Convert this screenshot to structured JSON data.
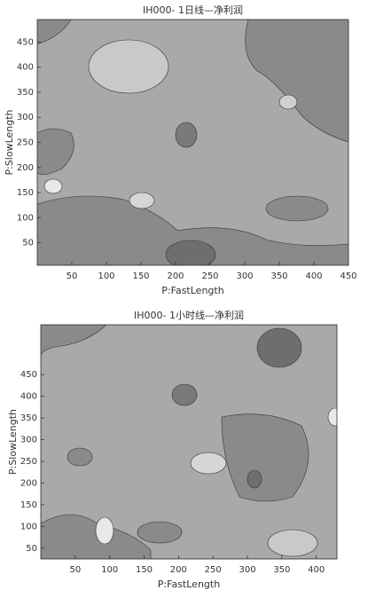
{
  "chart_data": [
    {
      "type": "contour",
      "title": "IH000- 1日线—净利润",
      "x_label": "P:FastLength",
      "y_label": "P:SlowLength",
      "xlim": [
        0,
        450
      ],
      "ylim": [
        5,
        495
      ],
      "xticks": [
        50,
        100,
        150,
        200,
        250,
        300,
        350,
        400,
        450
      ],
      "yticks": [
        50,
        100,
        150,
        200,
        250,
        300,
        350,
        400,
        450
      ]
    },
    {
      "type": "contour",
      "title": "IH000- 1小时线—净利润",
      "x_label": "P:FastLength",
      "y_label": "P:SlowLength",
      "xlim": [
        0,
        430
      ],
      "ylim": [
        25,
        565
      ],
      "xticks": [
        50,
        100,
        150,
        200,
        250,
        300,
        350,
        400
      ],
      "yticks": [
        50,
        100,
        150,
        200,
        250,
        300,
        350,
        400,
        450
      ]
    }
  ]
}
